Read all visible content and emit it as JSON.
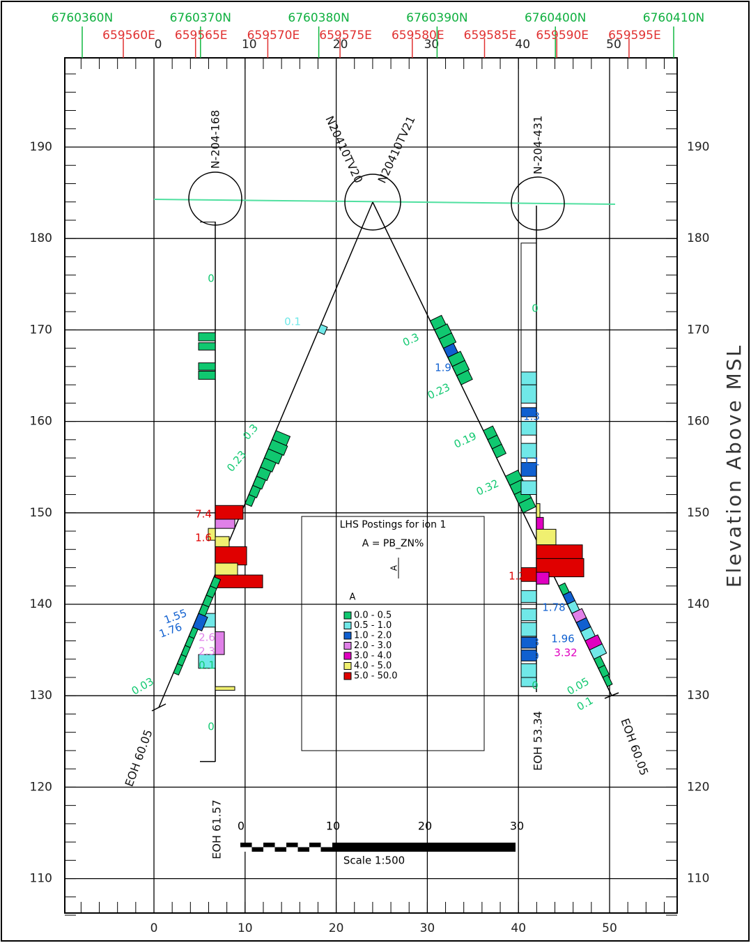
{
  "header": {
    "northings": [
      "6760360N",
      "6760370N",
      "6760380N",
      "6760390N",
      "6760400N",
      "6760410N"
    ],
    "eastings": [
      "659560E",
      "659565E",
      "659570E",
      "659575E",
      "659580E",
      "659585E",
      "659590E",
      "659595E"
    ],
    "section_offsets": [
      "0",
      "10",
      "20",
      "30",
      "40",
      "50"
    ]
  },
  "axes": {
    "x_labels": [
      "0",
      "10",
      "20",
      "30",
      "40",
      "50"
    ],
    "y_labels": [
      "190",
      "180",
      "170",
      "160",
      "150",
      "140",
      "130",
      "120",
      "110"
    ],
    "y_title": "Elevation Above MSL"
  },
  "drillholes": [
    {
      "name": "N-204-168",
      "eoh": "EOH 61.57"
    },
    {
      "name": "N20410TV20",
      "eoh": "EOH 60.05"
    },
    {
      "name": "N20410TV21",
      "eoh": "EOH 60.05"
    },
    {
      "name": "N-204-431",
      "eoh": "EOH 53.34"
    }
  ],
  "legend": {
    "title": "LHS Postings for ion 1",
    "formula": "A = PB_ZN%",
    "marker": "A",
    "heading": "A",
    "items": [
      {
        "label": "0.0 - 0.5",
        "color": "#10c870"
      },
      {
        "label": "0.5 - 1.0",
        "color": "#70e8e8"
      },
      {
        "label": "1.0 - 2.0",
        "color": "#1060d0"
      },
      {
        "label": "2.0 - 3.0",
        "color": "#e080e8"
      },
      {
        "label": "3.0 - 4.0",
        "color": "#e000c0"
      },
      {
        "label": "4.0 - 5.0",
        "color": "#f0f070"
      },
      {
        "label": "5.0 - 50.0",
        "color": "#e00000"
      }
    ]
  },
  "scale": {
    "ticks": [
      "0",
      "10",
      "20",
      "30"
    ],
    "label": "Scale 1:500"
  },
  "sample_labels": [
    "0",
    "0.1",
    "0.3",
    "1.9",
    "0.23",
    "0.19",
    "0.32",
    "0.3",
    "0.23",
    "1.55",
    "1.76",
    "0.03",
    "2.6",
    "2.3",
    "0.1",
    "0",
    "0",
    "1.3",
    "1.1",
    "1.8",
    "1.9",
    "1.78",
    "1.96",
    "3.32",
    "0.05",
    "0.1",
    "7.4",
    "1.6",
    "1.2",
    "0"
  ]
}
